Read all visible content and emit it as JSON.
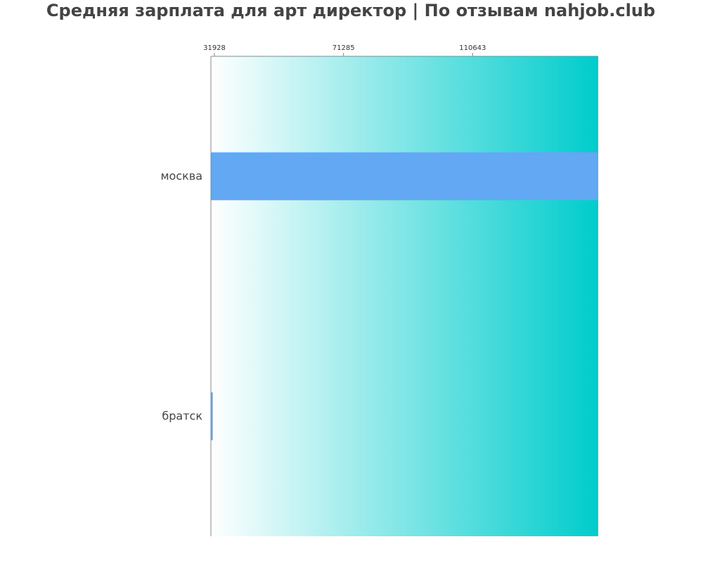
{
  "chart_data": {
    "type": "bar",
    "orientation": "horizontal",
    "title": "Средняя зарплата для арт директор | По отзывам nahjob.club",
    "categories": [
      "москва",
      "братск"
    ],
    "values": [
      150000,
      32500
    ],
    "x_ticks": [
      31928,
      71285,
      110643
    ],
    "xlim": [
      31928,
      150000
    ],
    "xlabel": "",
    "ylabel": "",
    "grid": false,
    "legend": "none",
    "colors": {
      "bar": "#62a8f3",
      "background_gradient_start": "#ffffff",
      "background_gradient_end": "#00cccc",
      "axis": "#888888",
      "title": "#444444",
      "text": "#444444"
    }
  }
}
